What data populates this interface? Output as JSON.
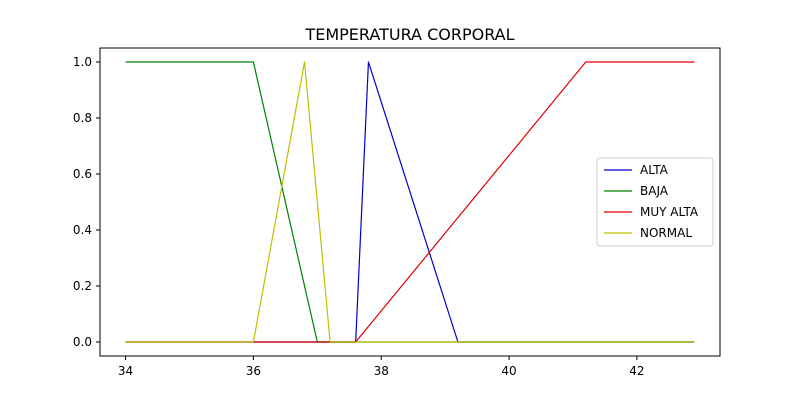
{
  "chart_data": {
    "type": "line",
    "title": "TEMPERATURA CORPORAL",
    "xlabel": "",
    "ylabel": "",
    "xlim": [
      33.6,
      43.3
    ],
    "ylim": [
      -0.05,
      1.05
    ],
    "xticks": [
      34,
      36,
      38,
      40,
      42
    ],
    "xtick_labels": [
      "34",
      "36",
      "38",
      "40",
      "42"
    ],
    "yticks": [
      0.0,
      0.2,
      0.4,
      0.6,
      0.8,
      1.0
    ],
    "ytick_labels": [
      "0.0",
      "0.2",
      "0.4",
      "0.6",
      "0.8",
      "1.0"
    ],
    "grid": false,
    "legend_position": "center-right",
    "series": [
      {
        "name": "ALTA",
        "color": "#0000cc",
        "x": [
          34,
          37.6,
          37.8,
          39.2,
          42.9
        ],
        "y": [
          0,
          0,
          1,
          0,
          0
        ]
      },
      {
        "name": "BAJA",
        "color": "#007f00",
        "x": [
          34,
          36.0,
          37.0,
          42.9
        ],
        "y": [
          1,
          1,
          0,
          0
        ]
      },
      {
        "name": "MUY ALTA",
        "color": "#e00000",
        "x": [
          34,
          37.6,
          41.2,
          42.9
        ],
        "y": [
          0,
          0,
          1,
          1
        ]
      },
      {
        "name": "NORMAL",
        "color": "#bfbf00",
        "x": [
          34,
          36.0,
          36.8,
          37.2,
          42.9
        ],
        "y": [
          0,
          0,
          1,
          0,
          0
        ]
      }
    ]
  }
}
